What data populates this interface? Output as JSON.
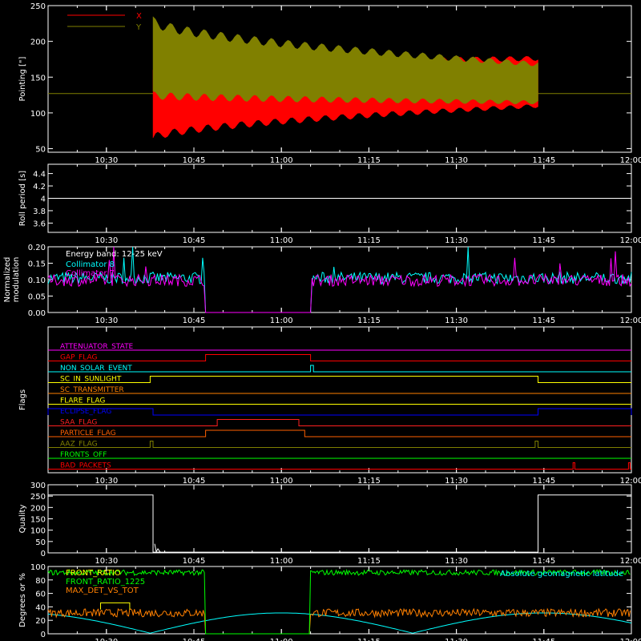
{
  "chart_data": [
    {
      "type": "line",
      "ylabel": "Pointing [\"]",
      "xlim": [
        "10:20",
        "12:00"
      ],
      "ylim": [
        45,
        250
      ],
      "yticks": [
        50,
        100,
        150,
        200,
        250
      ],
      "xticks": [
        "10:30",
        "10:45",
        "11:00",
        "11:15",
        "11:30",
        "11:45",
        "12:00"
      ],
      "legend": "top-left",
      "colors": {
        "X": "#ff0000",
        "Y": "#808000"
      },
      "series": [
        {
          "name": "X",
          "baseline": 127,
          "active_start": "10:38",
          "active_end": "11:44",
          "upper_start": 160,
          "upper_end": 176,
          "lower_start": 65,
          "lower_end": 110
        },
        {
          "name": "Y",
          "baseline": 127,
          "active_start": "10:38",
          "active_end": "11:44",
          "upper_start": 228,
          "upper_end": 168,
          "lower_start": 125,
          "lower_end": 115
        }
      ]
    },
    {
      "type": "line",
      "ylabel": "Roll period [s]",
      "ylim": [
        3.45,
        4.55
      ],
      "yticks": [
        3.6,
        3.8,
        4.0,
        4.2,
        4.4
      ],
      "xticks": [
        "10:30",
        "10:45",
        "11:00",
        "11:15",
        "11:30",
        "11:45",
        "12:00"
      ],
      "series": [
        {
          "name": "",
          "value": 4.0
        }
      ]
    },
    {
      "type": "line",
      "ylabel": "Normalized modulation",
      "ylim": [
        0,
        0.2
      ],
      "yticks": [
        "0.00",
        "0.05",
        "0.10",
        "0.15",
        "0.20"
      ],
      "xticks": [
        "10:30",
        "10:45",
        "11:00",
        "11:15",
        "11:30",
        "11:45",
        "12:00"
      ],
      "annotation": "Energy band: 12-25 keV",
      "legend": "top-left",
      "series": [
        {
          "name": "Collimator 8",
          "color": "#00ffff",
          "mean": 0.105,
          "spread": 0.018,
          "gap_start": "10:47",
          "gap_end": "11:05"
        },
        {
          "name": "Collimator 7",
          "color": "#ff00ff",
          "mean": 0.098,
          "spread": 0.018,
          "gap_start": "10:47",
          "gap_end": "11:05"
        }
      ]
    },
    {
      "type": "line",
      "ylabel": "Flags",
      "xticks": [
        "10:30",
        "10:45",
        "11:00",
        "11:15",
        "11:30",
        "11:45",
        "12:00"
      ],
      "flags": [
        {
          "name": "ATTENUATOR_STATE",
          "color": "#ff00ff",
          "on": []
        },
        {
          "name": "GAP_FLAG",
          "color": "#ff0000",
          "on": [
            [
              "10:47",
              "11:05"
            ]
          ]
        },
        {
          "name": "NON_SOLAR_EVENT",
          "color": "#00ffff",
          "on": [
            [
              "11:05",
              "11:05.5"
            ]
          ]
        },
        {
          "name": "SC_IN_SUNLIGHT",
          "color": "#ffff00",
          "on": [
            [
              "10:37.5",
              "11:44"
            ]
          ]
        },
        {
          "name": "SC_TRANSMITTER",
          "color": "#ff8000",
          "on": []
        },
        {
          "name": "FLARE_FLAG",
          "color": "#ffff00",
          "on": []
        },
        {
          "name": "ECLIPSE_FLAG",
          "color": "#0000ff",
          "on": [
            [
              "10:20",
              "10:38"
            ],
            [
              "11:44",
              "12:00"
            ]
          ]
        },
        {
          "name": "SAA_FLAG",
          "color": "#ff2020",
          "on": [
            [
              "10:49",
              "11:03"
            ]
          ]
        },
        {
          "name": "PARTICLE_FLAG",
          "color": "#ff6000",
          "on": [
            [
              "10:47",
              "11:04"
            ]
          ]
        },
        {
          "name": "AAZ_FLAG",
          "color": "#808000",
          "on": [
            [
              "10:37.5",
              "10:38"
            ],
            [
              "11:43.5",
              "11:44"
            ]
          ]
        },
        {
          "name": "FRONTS_OFF",
          "color": "#00ff00",
          "on": []
        },
        {
          "name": "BAD_PACKETS",
          "color": "#ff0000",
          "on": [
            [
              "11:50",
              "11:50.3"
            ],
            [
              "11:59.5",
              "11:59.8"
            ]
          ]
        }
      ]
    },
    {
      "type": "line",
      "ylabel": "Quality",
      "ylim": [
        0,
        300
      ],
      "yticks": [
        0,
        50,
        100,
        150,
        200,
        250,
        300
      ],
      "xticks": [
        "10:30",
        "10:45",
        "11:00",
        "11:15",
        "11:30",
        "11:45",
        "12:00"
      ],
      "series": [
        {
          "name": "",
          "segments": [
            [
              "10:20",
              "10:38",
              255
            ],
            [
              "10:38",
              "11:44",
              3
            ],
            [
              "11:44",
              "12:00",
              255
            ]
          ]
        }
      ]
    },
    {
      "type": "line",
      "ylabel": "Degrees or %",
      "ylim": [
        0,
        100
      ],
      "yticks": [
        0,
        20,
        40,
        60,
        80,
        100
      ],
      "xticks": [
        "10:30",
        "10:45",
        "11:00",
        "11:15",
        "11:30",
        "11:45",
        "12:00"
      ],
      "legend": "top-left",
      "series": [
        {
          "name": "FRONT_RATIO",
          "color": "#ffff00"
        },
        {
          "name": "FRONT_RATIO_1225",
          "color": "#00ff00",
          "mean": 91,
          "gap_start": "10:47",
          "gap_end": "11:05"
        },
        {
          "name": "MAX_DET_VS_TOT",
          "color": "#ff8000",
          "mean": 31,
          "gap_start": "10:47",
          "gap_end": "11:05"
        },
        {
          "name": "Absolute geomagnetic latitude",
          "color": "#00ffff"
        }
      ]
    }
  ]
}
